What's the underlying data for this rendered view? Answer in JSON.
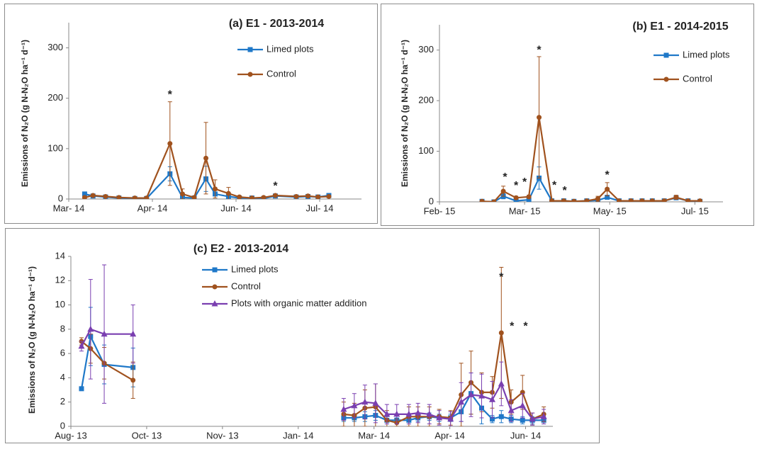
{
  "chart_data": [
    {
      "type": "line",
      "title": "(a) E1 - 2013-2014",
      "y_label": "Emissions of N₂O (g N-N₂O ha⁻¹ d⁻¹)",
      "x": [
        0.19,
        0.29,
        0.44,
        0.6,
        0.79,
        0.93,
        1.21,
        1.36,
        1.5,
        1.64,
        1.75,
        1.91,
        2.04,
        2.19,
        2.33,
        2.47,
        2.72,
        2.86,
        2.98,
        3.11
      ],
      "xlim": [
        0,
        3.5
      ],
      "xticks": [
        {
          "value": 0,
          "label": "Mar- 14"
        },
        {
          "value": 1,
          "label": "Apr- 14"
        },
        {
          "value": 2,
          "label": "Jun- 14"
        },
        {
          "value": 3,
          "label": "Jul- 14"
        }
      ],
      "ylim": [
        0,
        350
      ],
      "yticks": [
        0,
        100,
        200,
        300
      ],
      "series": [
        {
          "name": "Limed plots",
          "color": "#1f78c8",
          "marker": "square",
          "values": [
            10,
            6,
            4,
            2,
            1,
            1,
            50,
            3,
            2,
            40,
            10,
            5,
            2,
            2,
            1,
            6,
            4,
            5,
            4,
            7
          ],
          "errors": [
            3,
            2,
            1,
            1,
            1,
            1,
            14,
            2,
            1,
            25,
            4,
            2,
            1,
            1,
            1,
            2,
            1,
            1,
            1,
            1
          ]
        },
        {
          "name": "Control",
          "color": "#a0521e",
          "marker": "circle",
          "values": [
            3,
            7,
            5,
            3,
            2,
            2,
            110,
            10,
            3,
            81,
            20,
            11,
            4,
            2,
            3,
            7,
            5,
            6,
            4,
            5
          ],
          "errors": [
            2,
            2,
            1,
            1,
            1,
            1,
            83,
            10,
            2,
            71,
            18,
            12,
            2,
            1,
            1,
            2,
            1,
            1,
            1,
            1
          ]
        }
      ],
      "annotations": [
        {
          "text": "*",
          "x": 1.21,
          "y": 206
        },
        {
          "text": "*",
          "x": 2.47,
          "y": 25
        }
      ]
    },
    {
      "type": "line",
      "title": "(b) E1 - 2014-2015",
      "y_label": "Emissions of N₂O (g N-N₂O ha⁻¹ d⁻¹)",
      "x": [
        0.5,
        0.64,
        0.75,
        0.9,
        1.05,
        1.17,
        1.32,
        1.46,
        1.58,
        1.73,
        1.86,
        1.97,
        2.11,
        2.25,
        2.38,
        2.5,
        2.64,
        2.78,
        2.92,
        3.06
      ],
      "xlim": [
        0,
        3.33
      ],
      "xticks": [
        {
          "value": 0,
          "label": "Feb- 15"
        },
        {
          "value": 1,
          "label": "Mar- 15"
        },
        {
          "value": 2,
          "label": "May- 15"
        },
        {
          "value": 3,
          "label": "Jul- 15"
        }
      ],
      "ylim": [
        0,
        350
      ],
      "yticks": [
        0,
        100,
        200,
        300
      ],
      "series": [
        {
          "name": "Limed plots",
          "color": "#1f78c8",
          "marker": "square",
          "values": [
            1,
            0,
            11,
            2,
            4,
            47,
            2,
            2,
            1,
            2,
            3,
            9,
            2,
            2,
            2,
            2,
            2,
            8,
            2,
            1
          ],
          "errors": [
            1,
            0,
            5,
            1,
            1,
            22,
            1,
            1,
            0,
            1,
            1,
            3,
            1,
            1,
            1,
            1,
            1,
            3,
            1,
            1
          ]
        },
        {
          "name": "Control",
          "color": "#a0521e",
          "marker": "circle",
          "values": [
            1,
            0,
            21,
            8,
            10,
            167,
            2,
            2,
            1,
            2,
            6,
            25,
            2,
            2,
            2,
            2,
            2,
            9,
            2,
            2
          ],
          "errors": [
            1,
            0,
            10,
            3,
            3,
            120,
            2,
            1,
            1,
            1,
            5,
            13,
            1,
            1,
            1,
            1,
            1,
            4,
            1,
            1
          ]
        }
      ],
      "annotations": [
        {
          "text": "*",
          "x": 0.77,
          "y": 48
        },
        {
          "text": "*",
          "x": 0.9,
          "y": 31
        },
        {
          "text": "*",
          "x": 1.0,
          "y": 38
        },
        {
          "text": "*",
          "x": 1.17,
          "y": 299
        },
        {
          "text": "*",
          "x": 1.35,
          "y": 32
        },
        {
          "text": "*",
          "x": 1.47,
          "y": 21
        },
        {
          "text": "*",
          "x": 1.97,
          "y": 52
        }
      ]
    },
    {
      "type": "line",
      "title": "(c) E2 - 2013-2014",
      "y_label": "Emissions of N₂O (g N-N₂O ha⁻¹ d⁻¹)",
      "x": [
        0.14,
        0.26,
        0.44,
        0.82,
        null,
        3.6,
        3.74,
        3.88,
        4.02,
        4.17,
        4.3,
        4.46,
        4.58,
        4.73,
        4.86,
        5.01,
        5.15,
        5.28,
        5.42,
        5.56,
        5.68,
        5.81,
        5.96,
        6.09,
        6.24
      ],
      "xlim": [
        0,
        6.36
      ],
      "xticks": [
        {
          "value": 0,
          "label": "Aug- 13"
        },
        {
          "value": 1,
          "label": "Oct- 13"
        },
        {
          "value": 2,
          "label": "Nov- 13"
        },
        {
          "value": 3,
          "label": "Jan- 14"
        },
        {
          "value": 4,
          "label": "Mar- 14"
        },
        {
          "value": 5,
          "label": "Apr- 14"
        },
        {
          "value": 6,
          "label": "Jun- 14"
        }
      ],
      "ylim": [
        0,
        14
      ],
      "yticks": [
        0,
        2,
        4,
        6,
        8,
        10,
        12,
        14
      ],
      "series": [
        {
          "name": "Limed plots",
          "color": "#1f78c8",
          "marker": "square",
          "values": [
            3.1,
            7.4,
            5.1,
            4.85,
            null,
            0.7,
            0.7,
            0.8,
            0.9,
            0.5,
            0.5,
            0.5,
            0.7,
            0.8,
            0.7,
            0.7,
            1.2,
            2.7,
            1.5,
            0.6,
            0.8,
            0.6,
            0.5,
            0.5,
            0.5
          ],
          "errors": [
            0,
            2.4,
            1.6,
            1.6,
            null,
            0.3,
            0.3,
            0.4,
            0.4,
            0.3,
            0.2,
            0.3,
            0.3,
            0.3,
            0.3,
            0.3,
            0.8,
            1.7,
            1.3,
            0.3,
            0.5,
            0.3,
            0.3,
            0.3,
            0.3
          ]
        },
        {
          "name": "Control",
          "color": "#a0521e",
          "marker": "circle",
          "values": [
            7.0,
            6.4,
            5.2,
            3.8,
            null,
            1.0,
            0.9,
            1.5,
            1.6,
            0.5,
            0.3,
            0.8,
            0.8,
            0.8,
            0.8,
            0.7,
            2.6,
            3.6,
            2.8,
            2.8,
            7.7,
            2.0,
            2.8,
            0.6,
            1.0
          ],
          "errors": [
            0.3,
            1.2,
            1.3,
            1.5,
            null,
            1.0,
            1.0,
            1.5,
            1.9,
            0.8,
            0.3,
            0.8,
            0.8,
            0.8,
            0.6,
            0.6,
            2.6,
            2.6,
            1.6,
            1.3,
            5.4,
            1.0,
            1.4,
            0.5,
            0.6
          ]
        },
        {
          "name": "Plots with organic matter addition",
          "color": "#7a3fb0",
          "marker": "triangle",
          "values": [
            6.6,
            8.0,
            7.6,
            7.6,
            null,
            1.4,
            1.7,
            2.0,
            1.9,
            1.0,
            1.0,
            1.0,
            1.1,
            1.0,
            0.7,
            0.6,
            2.0,
            2.6,
            2.5,
            2.2,
            3.5,
            1.3,
            1.7,
            0.6,
            0.8
          ],
          "errors": [
            0.4,
            4.1,
            5.7,
            2.4,
            null,
            0.9,
            1.0,
            1.4,
            1.6,
            0.8,
            0.8,
            0.8,
            0.8,
            0.8,
            0.6,
            0.6,
            1.6,
            1.8,
            1.8,
            1.5,
            1.8,
            0.9,
            1.0,
            0.5,
            0.6
          ]
        }
      ],
      "annotations": [
        {
          "text": "*",
          "x": 5.68,
          "y": 12.25
        },
        {
          "text": "*",
          "x": 5.82,
          "y": 8.2
        },
        {
          "text": "*",
          "x": 6.0,
          "y": 8.2
        }
      ]
    }
  ]
}
